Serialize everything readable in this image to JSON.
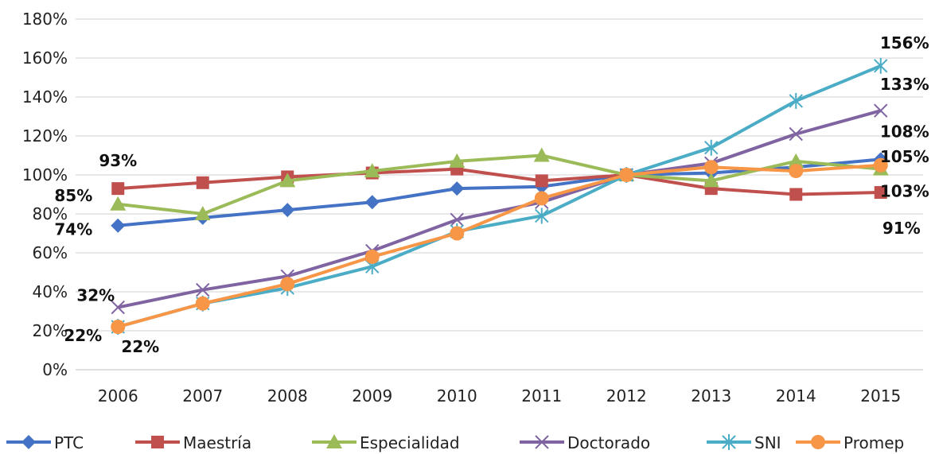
{
  "chart_data": {
    "type": "line",
    "categories": [
      "2006",
      "2007",
      "2008",
      "2009",
      "2010",
      "2011",
      "2012",
      "2013",
      "2014",
      "2015"
    ],
    "ylim": [
      0,
      180
    ],
    "ytick_step": 20,
    "ytick_suffix": "%",
    "grid": true,
    "legend_position": "bottom",
    "series": [
      {
        "name": "PTC",
        "color": "#4472C4",
        "marker": "diamond",
        "values": [
          74,
          78,
          82,
          86,
          93,
          94,
          100,
          101,
          104,
          108
        ]
      },
      {
        "name": "Maestría",
        "color": "#C0504D",
        "marker": "square",
        "values": [
          93,
          96,
          99,
          101,
          103,
          97,
          100,
          93,
          90,
          91
        ]
      },
      {
        "name": "Especialidad",
        "color": "#9BBB59",
        "marker": "triangle",
        "values": [
          85,
          80,
          97,
          102,
          107,
          110,
          100,
          97,
          107,
          103
        ]
      },
      {
        "name": "Doctorado",
        "color": "#8064A2",
        "marker": "x",
        "values": [
          32,
          41,
          48,
          61,
          77,
          86,
          100,
          106,
          121,
          133
        ]
      },
      {
        "name": "SNI",
        "color": "#4BACC6",
        "marker": "star",
        "values": [
          22,
          34,
          42,
          53,
          71,
          79,
          100,
          114,
          138,
          156
        ]
      },
      {
        "name": "Promep",
        "color": "#F79646",
        "marker": "circle",
        "values": [
          22,
          34,
          44,
          58,
          70,
          88,
          100,
          104,
          102,
          105
        ]
      }
    ],
    "data_labels": [
      {
        "text": "74%",
        "series": "PTC",
        "index": 0
      },
      {
        "text": "93%",
        "series": "Maestría",
        "index": 0
      },
      {
        "text": "85%",
        "series": "Especialidad",
        "index": 0
      },
      {
        "text": "32%",
        "series": "Doctorado",
        "index": 0
      },
      {
        "text": "22%",
        "series": "SNI",
        "index": 0
      },
      {
        "text": "22%",
        "series": "Promep",
        "index": 0
      },
      {
        "text": "156%",
        "series": "SNI",
        "index": 9
      },
      {
        "text": "133%",
        "series": "Doctorado",
        "index": 9
      },
      {
        "text": "108%",
        "series": "PTC",
        "index": 9
      },
      {
        "text": "105%",
        "series": "Promep",
        "index": 9
      },
      {
        "text": "103%",
        "series": "Especialidad",
        "index": 9
      },
      {
        "text": "91%",
        "series": "Maestría",
        "index": 9
      }
    ]
  }
}
